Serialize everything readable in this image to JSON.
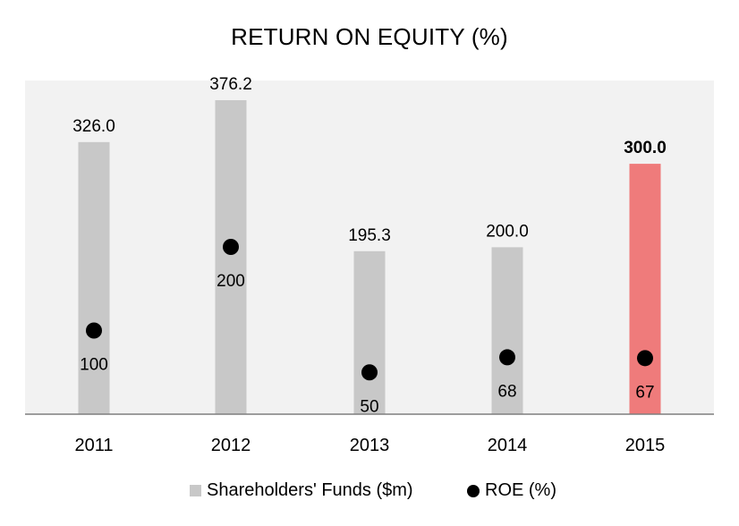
{
  "chart_data": {
    "type": "bar",
    "title": "RETURN ON EQUITY (%)",
    "xlabel": "",
    "ylabel": "",
    "categories": [
      "2011",
      "2012",
      "2013",
      "2014",
      "2015"
    ],
    "series": [
      {
        "name": "Shareholders' Funds ($m)",
        "kind": "bar",
        "values": [
          326.0,
          376.2,
          195.3,
          200.0,
          300.0
        ],
        "labels": [
          "326.0",
          "376.2",
          "195.3",
          "200.0",
          "300.0"
        ],
        "color": "#c8c8c8",
        "highlight_index": 4,
        "highlight_color": "#ef7b7b"
      },
      {
        "name": "ROE (%)",
        "kind": "scatter",
        "values": [
          100,
          200,
          50,
          68,
          67
        ],
        "labels": [
          "100",
          "200",
          "50",
          "68",
          "67"
        ],
        "color": "#000000"
      }
    ],
    "plot_background": "#f2f2f2",
    "grid": false,
    "legend_position": "bottom"
  }
}
